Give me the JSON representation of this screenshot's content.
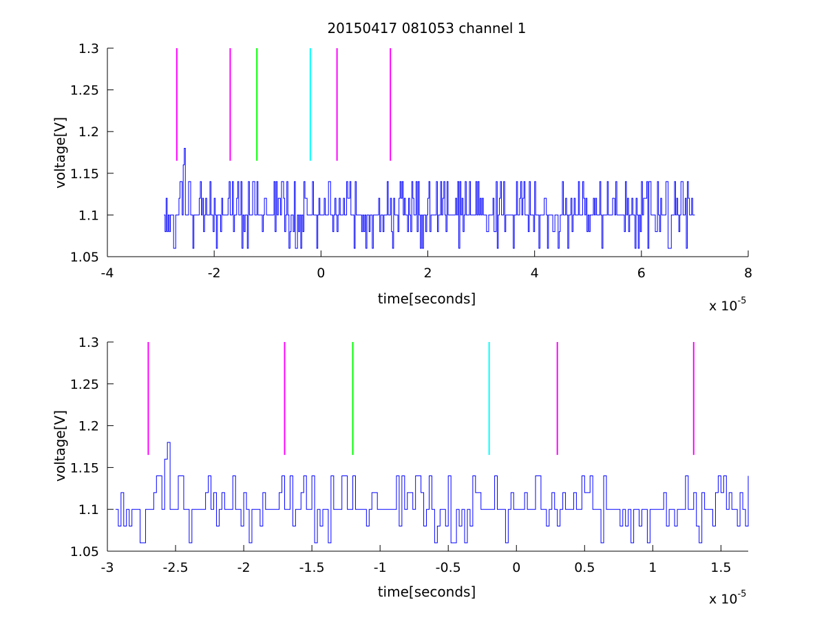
{
  "title": "20150417 081053 channel 1",
  "colors": {
    "signal": "#0000ff",
    "magenta": "#ff00ff",
    "green": "#00ff00",
    "cyan": "#00ffff"
  },
  "chart_data": [
    {
      "type": "line",
      "xlabel": "time[seconds]",
      "ylabel": "voltage[V]",
      "x_exponent_label": "x 10",
      "x_exponent_power": "-5",
      "xlim": [
        -4,
        8
      ],
      "ylim": [
        1.05,
        1.3
      ],
      "x_ticks": [
        -4,
        -2,
        0,
        2,
        4,
        6,
        8
      ],
      "x_tick_labels": [
        "-4",
        "-2",
        "0",
        "2",
        "4",
        "6",
        "8"
      ],
      "y_ticks": [
        1.05,
        1.1,
        1.15,
        1.2,
        1.25,
        1.3
      ],
      "y_tick_labels": [
        "1.05",
        "1.1",
        "1.15",
        "1.2",
        "1.25",
        "1.3"
      ],
      "signal_range": [
        -2.94,
        7.0
      ],
      "markers": [
        {
          "x": -2.7,
          "color": "magenta"
        },
        {
          "x": -1.7,
          "color": "magenta"
        },
        {
          "x": -1.2,
          "color": "green"
        },
        {
          "x": -0.2,
          "color": "cyan"
        },
        {
          "x": 0.3,
          "color": "magenta"
        },
        {
          "x": 1.3,
          "color": "magenta"
        }
      ],
      "marker_y_range": [
        1.165,
        1.3
      ]
    },
    {
      "type": "line",
      "xlabel": "time[seconds]",
      "ylabel": "voltage[V]",
      "x_exponent_label": "x 10",
      "x_exponent_power": "-5",
      "xlim": [
        -3.0,
        1.7
      ],
      "ylim": [
        1.05,
        1.3
      ],
      "x_ticks": [
        -3,
        -2.5,
        -2,
        -1.5,
        -1,
        -0.5,
        0,
        0.5,
        1,
        1.5
      ],
      "x_tick_labels": [
        "-3",
        "-2.5",
        "-2",
        "-1.5",
        "-1",
        "-0.5",
        "0",
        "0.5",
        "1",
        "1.5"
      ],
      "y_ticks": [
        1.05,
        1.1,
        1.15,
        1.2,
        1.25,
        1.3
      ],
      "y_tick_labels": [
        "1.05",
        "1.1",
        "1.15",
        "1.2",
        "1.25",
        "1.3"
      ],
      "signal_range": [
        -2.94,
        1.7
      ],
      "markers": [
        {
          "x": -2.7,
          "color": "magenta"
        },
        {
          "x": -1.7,
          "color": "magenta"
        },
        {
          "x": -1.2,
          "color": "green"
        },
        {
          "x": -0.2,
          "color": "cyan"
        },
        {
          "x": 0.3,
          "color": "magenta"
        },
        {
          "x": 1.3,
          "color": "magenta"
        }
      ],
      "marker_y_range": [
        1.165,
        1.3
      ]
    }
  ]
}
